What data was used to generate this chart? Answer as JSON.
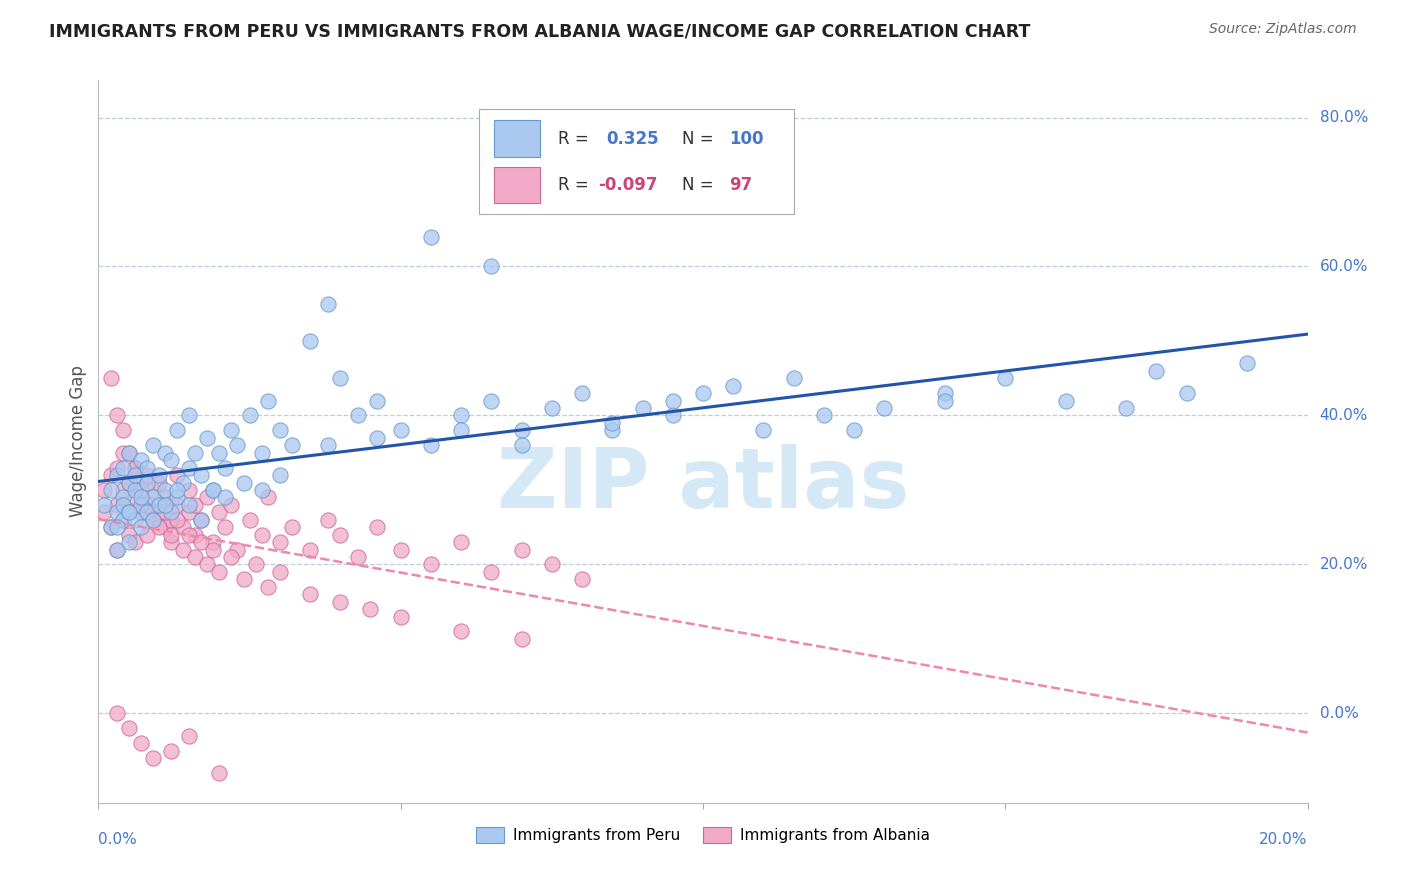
{
  "title": "IMMIGRANTS FROM PERU VS IMMIGRANTS FROM ALBANIA WAGE/INCOME GAP CORRELATION CHART",
  "source": "Source: ZipAtlas.com",
  "ylabel": "Wage/Income Gap",
  "xlim": [
    0.0,
    0.2
  ],
  "ylim": [
    -0.12,
    0.85
  ],
  "peru_R": 0.325,
  "peru_N": 100,
  "albania_R": -0.097,
  "albania_N": 97,
  "peru_color": "#aac8f0",
  "albania_color": "#f0aac8",
  "peru_edge_color": "#6699cc",
  "albania_edge_color": "#cc6699",
  "peru_line_color": "#2255aa",
  "albania_line_color": "#ee88aa",
  "grid_color": "#bbccdd",
  "background_color": "#ffffff",
  "watermark_color": "#d5e8f5",
  "right_label_color": "#4477cc",
  "peru_x": [
    0.001,
    0.002,
    0.002,
    0.003,
    0.003,
    0.003,
    0.004,
    0.004,
    0.004,
    0.004,
    0.005,
    0.005,
    0.005,
    0.005,
    0.006,
    0.006,
    0.006,
    0.007,
    0.007,
    0.007,
    0.008,
    0.008,
    0.008,
    0.009,
    0.009,
    0.01,
    0.01,
    0.011,
    0.011,
    0.012,
    0.012,
    0.013,
    0.013,
    0.014,
    0.015,
    0.015,
    0.016,
    0.017,
    0.018,
    0.019,
    0.02,
    0.021,
    0.022,
    0.023,
    0.025,
    0.027,
    0.028,
    0.03,
    0.032,
    0.035,
    0.038,
    0.04,
    0.043,
    0.046,
    0.05,
    0.055,
    0.06,
    0.065,
    0.07,
    0.075,
    0.08,
    0.085,
    0.09,
    0.095,
    0.1,
    0.11,
    0.12,
    0.13,
    0.14,
    0.15,
    0.16,
    0.17,
    0.175,
    0.18,
    0.19,
    0.003,
    0.005,
    0.007,
    0.009,
    0.011,
    0.013,
    0.015,
    0.017,
    0.019,
    0.021,
    0.024,
    0.027,
    0.03,
    0.055,
    0.065,
    0.038,
    0.046,
    0.06,
    0.07,
    0.085,
    0.095,
    0.105,
    0.115,
    0.125,
    0.14
  ],
  "peru_y": [
    0.28,
    0.3,
    0.25,
    0.32,
    0.27,
    0.22,
    0.29,
    0.33,
    0.26,
    0.28,
    0.31,
    0.27,
    0.23,
    0.35,
    0.3,
    0.26,
    0.32,
    0.28,
    0.34,
    0.25,
    0.31,
    0.27,
    0.33,
    0.29,
    0.36,
    0.28,
    0.32,
    0.3,
    0.35,
    0.27,
    0.34,
    0.29,
    0.38,
    0.31,
    0.33,
    0.4,
    0.35,
    0.32,
    0.37,
    0.3,
    0.35,
    0.33,
    0.38,
    0.36,
    0.4,
    0.35,
    0.42,
    0.38,
    0.36,
    0.5,
    0.55,
    0.45,
    0.4,
    0.42,
    0.38,
    0.36,
    0.4,
    0.42,
    0.38,
    0.41,
    0.43,
    0.38,
    0.41,
    0.4,
    0.43,
    0.38,
    0.4,
    0.41,
    0.43,
    0.45,
    0.42,
    0.41,
    0.46,
    0.43,
    0.47,
    0.25,
    0.27,
    0.29,
    0.26,
    0.28,
    0.3,
    0.28,
    0.26,
    0.3,
    0.29,
    0.31,
    0.3,
    0.32,
    0.64,
    0.6,
    0.36,
    0.37,
    0.38,
    0.36,
    0.39,
    0.42,
    0.44,
    0.45,
    0.38,
    0.42
  ],
  "albania_x": [
    0.001,
    0.001,
    0.002,
    0.002,
    0.003,
    0.003,
    0.003,
    0.004,
    0.004,
    0.004,
    0.005,
    0.005,
    0.005,
    0.006,
    0.006,
    0.006,
    0.007,
    0.007,
    0.008,
    0.008,
    0.008,
    0.009,
    0.009,
    0.01,
    0.01,
    0.011,
    0.011,
    0.012,
    0.012,
    0.013,
    0.013,
    0.014,
    0.015,
    0.015,
    0.016,
    0.016,
    0.017,
    0.018,
    0.019,
    0.02,
    0.021,
    0.022,
    0.023,
    0.025,
    0.027,
    0.028,
    0.03,
    0.032,
    0.035,
    0.038,
    0.04,
    0.043,
    0.046,
    0.05,
    0.055,
    0.06,
    0.065,
    0.07,
    0.075,
    0.08,
    0.002,
    0.003,
    0.004,
    0.005,
    0.006,
    0.007,
    0.008,
    0.009,
    0.01,
    0.011,
    0.012,
    0.013,
    0.014,
    0.015,
    0.016,
    0.017,
    0.018,
    0.019,
    0.02,
    0.022,
    0.024,
    0.026,
    0.028,
    0.03,
    0.035,
    0.04,
    0.045,
    0.05,
    0.06,
    0.07,
    0.003,
    0.005,
    0.007,
    0.009,
    0.012,
    0.015,
    0.02
  ],
  "albania_y": [
    0.3,
    0.27,
    0.32,
    0.25,
    0.28,
    0.33,
    0.22,
    0.3,
    0.26,
    0.35,
    0.27,
    0.31,
    0.24,
    0.29,
    0.33,
    0.23,
    0.27,
    0.31,
    0.28,
    0.24,
    0.32,
    0.26,
    0.3,
    0.27,
    0.31,
    0.25,
    0.29,
    0.26,
    0.23,
    0.28,
    0.32,
    0.25,
    0.27,
    0.3,
    0.24,
    0.28,
    0.26,
    0.29,
    0.23,
    0.27,
    0.25,
    0.28,
    0.22,
    0.26,
    0.24,
    0.29,
    0.23,
    0.25,
    0.22,
    0.26,
    0.24,
    0.21,
    0.25,
    0.22,
    0.2,
    0.23,
    0.19,
    0.22,
    0.2,
    0.18,
    0.45,
    0.4,
    0.38,
    0.35,
    0.33,
    0.3,
    0.28,
    0.26,
    0.25,
    0.27,
    0.24,
    0.26,
    0.22,
    0.24,
    0.21,
    0.23,
    0.2,
    0.22,
    0.19,
    0.21,
    0.18,
    0.2,
    0.17,
    0.19,
    0.16,
    0.15,
    0.14,
    0.13,
    0.11,
    0.1,
    0.0,
    -0.02,
    -0.04,
    -0.06,
    -0.05,
    -0.03,
    -0.08
  ]
}
